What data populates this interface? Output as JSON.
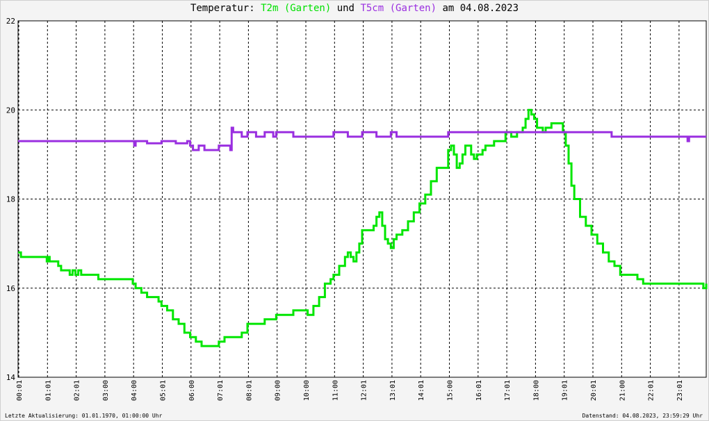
{
  "title": {
    "prefix": "Temperatur:",
    "series1": "T2m (Garten)",
    "connector": "und",
    "series2": "T5cm (Garten)",
    "suffix": "am 04.08.2023"
  },
  "footer": {
    "left": "Letzte Aktualisierung: 01.01.1970, 01:00:00 Uhr",
    "right": "Datenstand: 04.08.2023, 23:59:29 Uhr"
  },
  "chart_data": {
    "type": "line",
    "title": "Temperatur: T2m (Garten) und T5cm (Garten) am 04.08.2023",
    "xlabel": "",
    "ylabel": "",
    "x_unit": "hours since 00:00",
    "xlim": [
      0.0,
      24.0
    ],
    "ylim": [
      14,
      22
    ],
    "y_ticks": [
      14,
      16,
      18,
      20,
      22
    ],
    "x_ticks": [
      "00:01",
      "01:01",
      "02:01",
      "03:00",
      "04:00",
      "05:01",
      "06:00",
      "07:01",
      "08:01",
      "09:00",
      "10:00",
      "11:00",
      "12:01",
      "13:01",
      "14:01",
      "15:00",
      "16:01",
      "17:01",
      "18:00",
      "19:01",
      "20:01",
      "21:00",
      "22:01",
      "23:01"
    ],
    "grid": true,
    "legend": "title",
    "series": [
      {
        "name": "T2m (Garten)",
        "color": "#00e600",
        "x": [
          0.0,
          0.1,
          0.2,
          0.5,
          0.9,
          1.0,
          1.05,
          1.1,
          1.4,
          1.5,
          1.8,
          1.9,
          2.0,
          2.1,
          2.2,
          2.4,
          2.6,
          2.8,
          3.0,
          3.2,
          3.5,
          3.8,
          4.0,
          4.1,
          4.3,
          4.5,
          4.7,
          4.9,
          5.0,
          5.2,
          5.4,
          5.6,
          5.8,
          6.0,
          6.2,
          6.4,
          6.6,
          6.8,
          7.0,
          7.2,
          7.4,
          7.6,
          7.8,
          8.0,
          8.2,
          8.4,
          8.6,
          8.8,
          9.0,
          9.3,
          9.6,
          9.9,
          10.0,
          10.1,
          10.3,
          10.5,
          10.7,
          10.9,
          11.0,
          11.2,
          11.4,
          11.5,
          11.6,
          11.7,
          11.8,
          11.9,
          12.0,
          12.2,
          12.4,
          12.5,
          12.6,
          12.7,
          12.8,
          12.9,
          13.0,
          13.1,
          13.2,
          13.4,
          13.6,
          13.8,
          14.0,
          14.2,
          14.4,
          14.6,
          14.8,
          15.0,
          15.1,
          15.2,
          15.3,
          15.4,
          15.5,
          15.6,
          15.7,
          15.8,
          15.9,
          16.0,
          16.1,
          16.2,
          16.3,
          16.4,
          16.6,
          16.8,
          17.0,
          17.2,
          17.4,
          17.6,
          17.7,
          17.8,
          17.9,
          18.0,
          18.1,
          18.2,
          18.3,
          18.4,
          18.5,
          18.6,
          18.8,
          19.0,
          19.1,
          19.2,
          19.3,
          19.4,
          19.6,
          19.8,
          20.0,
          20.2,
          20.4,
          20.6,
          20.8,
          21.0,
          21.2,
          21.4,
          21.6,
          21.8,
          22.0,
          22.2,
          22.4,
          22.6,
          22.8,
          23.0,
          23.2,
          23.4,
          23.6,
          23.8,
          23.9,
          24.0
        ],
        "y": [
          16.8,
          16.7,
          16.7,
          16.7,
          16.7,
          16.6,
          16.7,
          16.6,
          16.5,
          16.4,
          16.3,
          16.4,
          16.3,
          16.4,
          16.3,
          16.3,
          16.3,
          16.2,
          16.2,
          16.2,
          16.2,
          16.2,
          16.1,
          16.0,
          15.9,
          15.8,
          15.8,
          15.7,
          15.6,
          15.5,
          15.3,
          15.2,
          15.0,
          14.9,
          14.8,
          14.7,
          14.7,
          14.7,
          14.8,
          14.9,
          14.9,
          14.9,
          15.0,
          15.2,
          15.2,
          15.2,
          15.3,
          15.3,
          15.4,
          15.4,
          15.5,
          15.5,
          15.5,
          15.4,
          15.6,
          15.8,
          16.1,
          16.2,
          16.3,
          16.5,
          16.7,
          16.8,
          16.7,
          16.6,
          16.8,
          17.0,
          17.3,
          17.3,
          17.4,
          17.6,
          17.7,
          17.4,
          17.1,
          17.0,
          16.9,
          17.1,
          17.2,
          17.3,
          17.5,
          17.7,
          17.9,
          18.1,
          18.4,
          18.7,
          18.7,
          19.1,
          19.2,
          19.0,
          18.7,
          18.8,
          19.0,
          19.2,
          19.2,
          19.0,
          18.9,
          19.0,
          19.0,
          19.1,
          19.2,
          19.2,
          19.3,
          19.3,
          19.5,
          19.4,
          19.5,
          19.6,
          19.8,
          20.0,
          19.9,
          19.8,
          19.6,
          19.6,
          19.5,
          19.6,
          19.6,
          19.7,
          19.7,
          19.5,
          19.2,
          18.8,
          18.3,
          18.0,
          17.6,
          17.4,
          17.2,
          17.0,
          16.8,
          16.6,
          16.5,
          16.3,
          16.3,
          16.3,
          16.2,
          16.1,
          16.1,
          16.1,
          16.1,
          16.1,
          16.1,
          16.1,
          16.1,
          16.1,
          16.1,
          16.1,
          16.0,
          16.1
        ]
      },
      {
        "name": "T5cm (Garten)",
        "color": "#9a2fe0",
        "x": [
          0.0,
          2.0,
          4.0,
          4.05,
          4.1,
          4.5,
          5.0,
          5.5,
          5.9,
          6.0,
          6.1,
          6.3,
          6.5,
          6.8,
          7.0,
          7.3,
          7.4,
          7.45,
          7.5,
          7.6,
          7.8,
          8.0,
          8.3,
          8.6,
          8.9,
          9.0,
          9.3,
          9.6,
          10.0,
          10.5,
          11.0,
          11.5,
          12.0,
          12.5,
          13.0,
          13.2,
          13.5,
          13.8,
          14.0,
          14.5,
          15.0,
          15.5,
          16.0,
          16.5,
          17.0,
          17.5,
          18.0,
          18.5,
          19.0,
          19.5,
          20.0,
          20.4,
          20.5,
          20.6,
          20.7,
          21.0,
          21.5,
          22.0,
          22.5,
          23.0,
          23.3,
          23.35,
          23.4,
          24.0
        ],
        "y": [
          19.3,
          19.3,
          19.3,
          19.2,
          19.3,
          19.25,
          19.3,
          19.25,
          19.3,
          19.2,
          19.1,
          19.2,
          19.1,
          19.1,
          19.2,
          19.2,
          19.1,
          19.6,
          19.5,
          19.5,
          19.4,
          19.5,
          19.4,
          19.5,
          19.4,
          19.5,
          19.5,
          19.4,
          19.4,
          19.4,
          19.5,
          19.4,
          19.5,
          19.4,
          19.5,
          19.4,
          19.4,
          19.4,
          19.4,
          19.4,
          19.5,
          19.5,
          19.5,
          19.5,
          19.5,
          19.5,
          19.5,
          19.5,
          19.5,
          19.5,
          19.5,
          19.5,
          19.5,
          19.5,
          19.4,
          19.4,
          19.4,
          19.4,
          19.4,
          19.4,
          19.4,
          19.3,
          19.4,
          19.4
        ]
      }
    ]
  }
}
